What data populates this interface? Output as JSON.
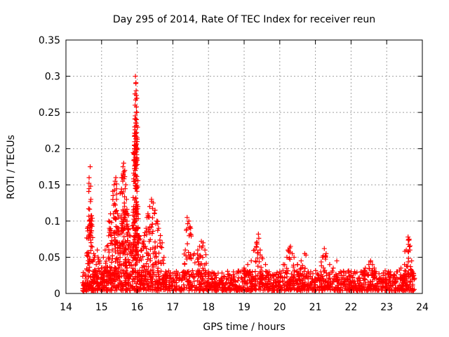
{
  "chart_data": {
    "type": "scatter",
    "title": "Day 295 of 2014, Rate Of TEC Index for receiver reun",
    "xlabel": "GPS time / hours",
    "ylabel": "ROTI / TECUs",
    "xlim": [
      14,
      24
    ],
    "ylim": [
      0,
      0.35
    ],
    "xticks": [
      14,
      15,
      16,
      17,
      18,
      19,
      20,
      21,
      22,
      23,
      24
    ],
    "yticks": [
      0,
      0.05,
      0.1,
      0.15,
      0.2,
      0.25,
      0.3,
      0.35
    ],
    "xtick_labels": [
      "14",
      "15",
      "16",
      "17",
      "18",
      "19",
      "20",
      "21",
      "22",
      "23",
      "24"
    ],
    "ytick_labels": [
      "0",
      "0.05",
      "0.1",
      "0.15",
      "0.2",
      "0.25",
      "0.3",
      "0.35"
    ],
    "grid": true,
    "marker": "plus",
    "color": "#ff0000",
    "series": [
      {
        "name": "ROTI",
        "x": [
          14.5,
          14.55,
          14.6,
          14.62,
          14.65,
          14.68,
          14.7,
          14.72,
          14.75,
          14.78,
          14.8,
          14.85,
          14.88,
          14.9,
          14.95,
          15.0,
          15.05,
          15.1,
          15.15,
          15.2,
          15.22,
          15.25,
          15.28,
          15.3,
          15.35,
          15.38,
          15.4,
          15.42,
          15.45,
          15.48,
          15.5,
          15.55,
          15.58,
          15.6,
          15.62,
          15.65,
          15.68,
          15.7,
          15.72,
          15.75,
          15.78,
          15.8,
          15.85,
          15.88,
          15.9,
          15.92,
          15.93,
          15.94,
          15.95,
          15.96,
          15.97,
          15.98,
          16.0,
          16.02,
          16.05,
          16.1,
          16.15,
          16.2,
          16.25,
          16.3,
          16.35,
          16.4,
          16.45,
          16.5,
          16.55,
          16.6,
          16.65,
          16.7,
          16.75,
          16.8,
          16.9,
          17.0,
          17.1,
          17.2,
          17.3,
          17.35,
          17.4,
          17.45,
          17.5,
          17.6,
          17.7,
          17.75,
          17.8,
          17.85,
          17.9,
          18.0,
          18.1,
          18.2,
          18.3,
          18.4,
          18.5,
          18.6,
          18.7,
          18.8,
          18.9,
          19.0,
          19.1,
          19.2,
          19.3,
          19.35,
          19.4,
          19.45,
          19.5,
          19.6,
          19.7,
          19.8,
          19.9,
          20.0,
          20.1,
          20.2,
          20.25,
          20.3,
          20.35,
          20.4,
          20.5,
          20.6,
          20.7,
          20.8,
          20.9,
          21.0,
          21.1,
          21.15,
          21.2,
          21.25,
          21.3,
          21.4,
          21.5,
          21.6,
          21.7,
          21.8,
          21.9,
          22.0,
          22.1,
          22.2,
          22.3,
          22.4,
          22.5,
          22.55,
          22.6,
          22.65,
          22.7,
          22.8,
          22.9,
          23.0,
          23.1,
          23.2,
          23.3,
          23.4,
          23.5,
          23.55,
          23.6,
          23.62,
          23.65,
          23.7,
          23.72
        ],
        "y": [
          0.012,
          0.015,
          0.09,
          0.092,
          0.16,
          0.175,
          0.13,
          0.1,
          0.045,
          0.055,
          0.05,
          0.04,
          0.06,
          0.05,
          0.045,
          0.035,
          0.05,
          0.06,
          0.065,
          0.1,
          0.09,
          0.11,
          0.08,
          0.06,
          0.15,
          0.155,
          0.16,
          0.13,
          0.11,
          0.09,
          0.07,
          0.14,
          0.16,
          0.175,
          0.18,
          0.17,
          0.15,
          0.13,
          0.11,
          0.09,
          0.08,
          0.07,
          0.06,
          0.09,
          0.12,
          0.2,
          0.23,
          0.26,
          0.3,
          0.29,
          0.28,
          0.24,
          0.2,
          0.12,
          0.08,
          0.06,
          0.07,
          0.08,
          0.09,
          0.11,
          0.12,
          0.13,
          0.125,
          0.115,
          0.1,
          0.09,
          0.08,
          0.07,
          0.05,
          0.03,
          0.025,
          0.02,
          0.018,
          0.02,
          0.03,
          0.06,
          0.105,
          0.1,
          0.09,
          0.055,
          0.06,
          0.065,
          0.072,
          0.07,
          0.06,
          0.03,
          0.02,
          0.025,
          0.018,
          0.015,
          0.02,
          0.025,
          0.03,
          0.028,
          0.03,
          0.035,
          0.04,
          0.045,
          0.06,
          0.07,
          0.082,
          0.06,
          0.05,
          0.04,
          0.03,
          0.025,
          0.02,
          0.03,
          0.04,
          0.05,
          0.06,
          0.065,
          0.055,
          0.05,
          0.04,
          0.045,
          0.055,
          0.03,
          0.02,
          0.02,
          0.025,
          0.03,
          0.05,
          0.062,
          0.055,
          0.04,
          0.035,
          0.045,
          0.03,
          0.025,
          0.02,
          0.025,
          0.03,
          0.02,
          0.03,
          0.035,
          0.04,
          0.045,
          0.04,
          0.035,
          0.03,
          0.02,
          0.025,
          0.02,
          0.022,
          0.025,
          0.03,
          0.035,
          0.04,
          0.06,
          0.078,
          0.075,
          0.06,
          0.045,
          0.03
        ],
        "baseline_band": {
          "x_range": [
            14.45,
            23.78
          ],
          "y_range": [
            0.004,
            0.032
          ]
        }
      }
    ]
  }
}
